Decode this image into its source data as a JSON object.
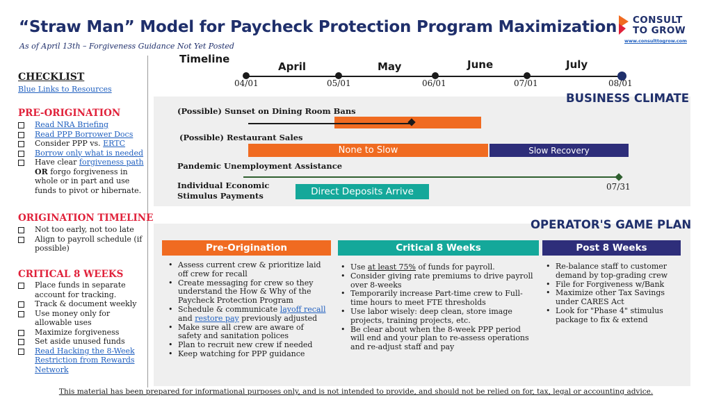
{
  "title": "“Straw Man” Model for Paycheck Protection Program Maximization",
  "subtitle": "As of April 13th – Forgiveness Guidance Not Yet Posted",
  "logo": {
    "line1": "CONSULT",
    "line2": "TO GROW",
    "url": "www.consulttogrow.com"
  },
  "checklist": {
    "heading": "CHECKLIST",
    "resources_link": "Blue Links to Resources",
    "pre_origination": {
      "heading": "PRE-ORIGINATION",
      "items": {
        "nra": "Read NRA Briefing",
        "docs": "Read PPP Borrower Docs",
        "consider_a": "Consider PPP vs. ",
        "consider_link": "ERTC",
        "borrow": "Borrow only what is needed",
        "clear_a": "Have clear ",
        "clear_link": "forgiveness path",
        "clear_or": "OR",
        "clear_b": " forgo forgiveness in whole or in part and use funds to pivot or hibernate."
      }
    },
    "origination_timeline": {
      "heading": "ORIGINATION TIMELINE",
      "items": [
        "Not too early, not too late",
        "Align to payroll schedule (if possible)"
      ]
    },
    "critical": {
      "heading": "CRITICAL 8 WEEKS",
      "items": [
        "Place funds in separate account for tracking.",
        "Track & document weekly",
        "Use money only for allowable uses",
        "Maximize forgiveness",
        "Set aside unused funds"
      ],
      "link_item": "Read Hacking the 8-Week Restriction from Rewards Network"
    }
  },
  "timeline": {
    "title": "Timeline",
    "months": [
      "April",
      "May",
      "June",
      "July"
    ],
    "dates": [
      "04/01",
      "05/01",
      "06/01",
      "07/01",
      "08/01"
    ]
  },
  "business_climate": {
    "heading": "BUSINESS CLIMATE",
    "sunset_label": "(Possible) Sunset on Dining Room Bans",
    "sales_label": "(Possible) Restaurant Sales",
    "sales_bar_1": "None to Slow",
    "sales_bar_2": "Slow Recovery",
    "pua_label": "Pandemic Unemployment Assistance",
    "pua_end": "07/31",
    "stimulus_label_1": "Individual Economic",
    "stimulus_label_2": "Stimulus Payments",
    "stimulus_bar": "Direct Deposits Arrive"
  },
  "game_plan": {
    "heading": "OPERATOR'S GAME PLAN",
    "columns": {
      "pre": {
        "title": "Pre-Origination",
        "b1": "Assess current crew & prioritize laid off crew for recall",
        "b2": "Create messaging for crew so they understand the How & Why of the Paycheck Protection Program",
        "b3_a": "Schedule & communicate ",
        "b3_link1": "layoff recall",
        "b3_b": " and ",
        "b3_link2": "restore pay",
        "b3_c": " previously adjusted",
        "b4": "Make sure all crew are aware of safety and sanitation polices",
        "b5": "Plan to recruit new crew if needed",
        "b6": "Keep watching for PPP guidance"
      },
      "critical": {
        "title": "Critical 8 Weeks",
        "b1_a": "Use ",
        "b1_u": "at least 75%",
        "b1_b": " of funds for payroll.",
        "b2": "Consider giving rate premiums to drive payroll over 8-weeks",
        "b3": "Temporarily increase Part-time crew to Full-time hours to meet FTE thresholds",
        "b4": "Use labor wisely: deep clean, store image projects, training projects, etc.",
        "b5": "Be clear about when the 8-week PPP period will end and your plan to re-assess operations and re-adjust staff and pay"
      },
      "post": {
        "title": "Post 8 Weeks",
        "b1": "Re-balance staff to customer demand by top-grading crew",
        "b2": "File for Forgiveness w/Bank",
        "b3": "Maximize other Tax Savings under CARES Act",
        "b4": "Look for \"Phase 4\" stimulus package to fix & extend"
      }
    }
  },
  "footer": "This material has been prepared for informational purposes only, and is not intended to provide, and should not be relied on for, tax, legal or accounting advice.",
  "colors": {
    "navy": "#1f2f6b",
    "red": "#e0213a",
    "orange": "#f06b21",
    "teal": "#14a89a",
    "purple": "#2e2e7a",
    "link": "#1f5fbf"
  }
}
